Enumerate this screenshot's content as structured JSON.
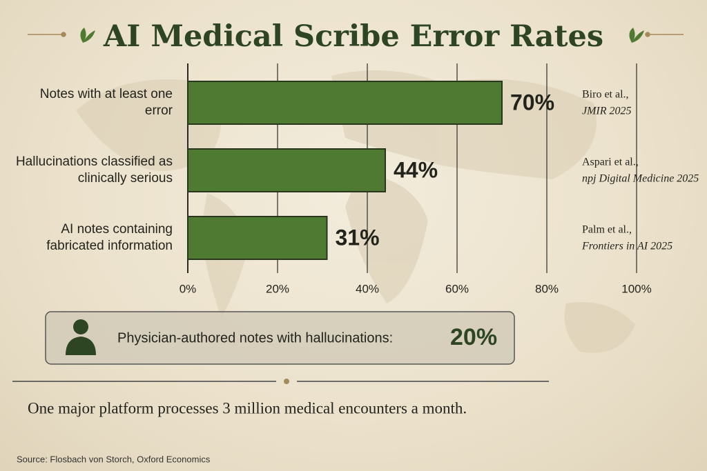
{
  "chart_data": {
    "type": "bar",
    "orientation": "horizontal",
    "title": "AI Medical Scribe Error Rates",
    "categories": [
      "Notes with at least one error",
      "Hallucinations classified as clinically serious",
      "AI notes containing fabricated information"
    ],
    "values": [
      70,
      44,
      31
    ],
    "value_labels": [
      "70%",
      "44%",
      "31%"
    ],
    "color": "#4f7a31",
    "xlim": [
      0,
      100
    ],
    "xticks": [
      {
        "value": 0,
        "label": "0%"
      },
      {
        "value": 20,
        "label": "20%"
      },
      {
        "value": 40,
        "label": "40%"
      },
      {
        "value": 60,
        "label": "60%"
      },
      {
        "value": 80,
        "label": "80%"
      },
      {
        "value": 100,
        "label": "100%"
      }
    ],
    "grid": true,
    "citations": [
      {
        "authors": "Biro et al.,",
        "venue": "JMIR 2025"
      },
      {
        "authors": "Aspari et al.,",
        "venue": "npj Digital Medicine 2025"
      },
      {
        "authors": "Palm et al.,",
        "venue": "Frontiers in AI 2025"
      }
    ],
    "callout": {
      "label": "Physician-authored notes with hallucinations:",
      "figure": "20%"
    },
    "note": "One major platform processes 3 million medical encounters a month.",
    "source": "Source: Flosbach von Storch, Oxford Economics"
  }
}
